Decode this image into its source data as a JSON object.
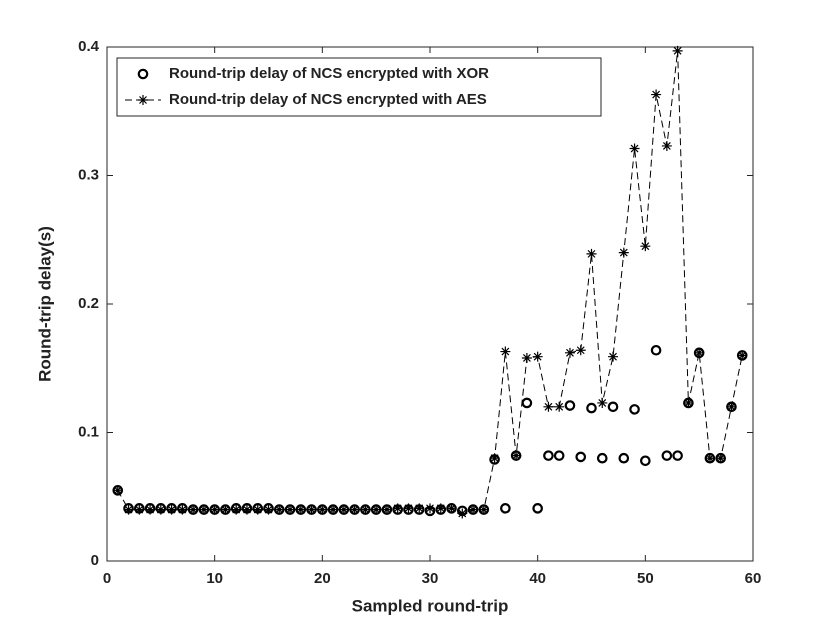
{
  "chart_data": {
    "type": "line",
    "x_label": "Sampled round-trip",
    "y_label": "Round-trip delay(s)",
    "x": [
      1,
      2,
      3,
      4,
      5,
      6,
      7,
      8,
      9,
      10,
      11,
      12,
      13,
      14,
      15,
      16,
      17,
      18,
      19,
      20,
      21,
      22,
      23,
      24,
      25,
      26,
      27,
      28,
      29,
      30,
      31,
      32,
      33,
      34,
      35,
      36,
      37,
      38,
      39,
      40,
      41,
      42,
      43,
      44,
      45,
      46,
      47,
      48,
      49,
      50,
      51,
      52,
      53,
      54,
      55,
      56,
      57,
      58,
      59
    ],
    "series": [
      {
        "name": "Round-trip delay of NCS encrypted with XOR",
        "color": "#000000",
        "marker": "circle",
        "line": false,
        "values": [
          0.055,
          0.041,
          0.041,
          0.041,
          0.041,
          0.041,
          0.041,
          0.04,
          0.04,
          0.04,
          0.04,
          0.041,
          0.041,
          0.041,
          0.041,
          0.04,
          0.04,
          0.04,
          0.04,
          0.04,
          0.04,
          0.04,
          0.04,
          0.04,
          0.04,
          0.04,
          0.04,
          0.04,
          0.04,
          0.039,
          0.04,
          0.041,
          0.039,
          0.04,
          0.04,
          0.079,
          0.041,
          0.082,
          0.123,
          0.041,
          0.082,
          0.082,
          0.121,
          0.081,
          0.119,
          0.08,
          0.12,
          0.08,
          0.118,
          0.078,
          0.164,
          0.082,
          0.082,
          0.123,
          0.162,
          0.08,
          0.08,
          0.12,
          0.16
        ]
      },
      {
        "name": "Round-trip delay of NCS encrypted with AES",
        "color": "#000000",
        "marker": "star",
        "line": true,
        "values": [
          0.055,
          0.04,
          0.04,
          0.04,
          0.04,
          0.04,
          0.04,
          0.04,
          0.04,
          0.04,
          0.04,
          0.04,
          0.04,
          0.04,
          0.04,
          0.04,
          0.04,
          0.04,
          0.04,
          0.04,
          0.04,
          0.04,
          0.04,
          0.04,
          0.04,
          0.04,
          0.041,
          0.041,
          0.041,
          0.041,
          0.041,
          0.041,
          0.037,
          0.04,
          0.04,
          0.08,
          0.163,
          0.082,
          0.158,
          0.159,
          0.12,
          0.12,
          0.162,
          0.164,
          0.239,
          0.123,
          0.159,
          0.24,
          0.321,
          0.245,
          0.363,
          0.323,
          0.397,
          0.123,
          0.162,
          0.08,
          0.08,
          0.12,
          0.16
        ]
      }
    ],
    "xlim": [
      0,
      60
    ],
    "xticks": [
      0,
      10,
      20,
      30,
      40,
      50,
      60
    ],
    "ylim": [
      0,
      0.4
    ],
    "yticks": [
      0,
      0.1,
      0.2,
      0.3,
      0.4
    ],
    "grid": false,
    "legend": "upper left"
  }
}
